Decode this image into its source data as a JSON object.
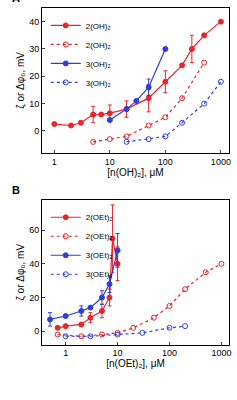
{
  "chart_data": [
    {
      "type": "scatter",
      "title": "A",
      "log": "x",
      "grid": false,
      "legend": "upper left",
      "x_label": "[n(OH)₂], μM",
      "y_label": "ζ or Δφ₀, mV",
      "xlim": [
        0.6,
        1400
      ],
      "xticks": [
        1,
        10,
        100,
        1000
      ],
      "ylim": [
        -8,
        45
      ],
      "yticks": [
        0,
        10,
        20,
        30,
        40
      ],
      "series": [
        {
          "name": "2(OH)₂",
          "color": "#e8252a",
          "marker": "circle",
          "line_style": "solid",
          "x": [
            1,
            2,
            3,
            5,
            7,
            10,
            20,
            50,
            100,
            200,
            300,
            500,
            1000
          ],
          "values": [
            2.5,
            2,
            3,
            6,
            6,
            6.5,
            8,
            12,
            18,
            24,
            30,
            35,
            40
          ],
          "errors": [
            null,
            null,
            null,
            3,
            null,
            3,
            3,
            5,
            4,
            null,
            5,
            null,
            null
          ]
        },
        {
          "name": "2(OH)₂",
          "color": "#e8252a",
          "marker": "circle-open",
          "line_style": "dot",
          "x": [
            5,
            10,
            20,
            50,
            100,
            200,
            500
          ],
          "values": [
            -4,
            -3,
            -2,
            2,
            5,
            12,
            25
          ],
          "errors": [
            null,
            null,
            null,
            null,
            null,
            null,
            null
          ]
        },
        {
          "name": "3(OH)₂",
          "color": "#2e3fd6",
          "marker": "circle",
          "line_style": "solid",
          "x": [
            10,
            20,
            30,
            50,
            100
          ],
          "values": [
            4,
            8,
            11,
            16,
            30
          ],
          "errors": [
            null,
            null,
            null,
            3,
            null
          ]
        },
        {
          "name": "3(OH)₂",
          "color": "#2e3fd6",
          "marker": "circle-open",
          "line_style": "dot",
          "x": [
            20,
            50,
            100,
            200,
            500,
            1000
          ],
          "values": [
            -4,
            -3,
            -2,
            3,
            10,
            18
          ],
          "errors": [
            null,
            null,
            null,
            null,
            null,
            null
          ]
        }
      ]
    },
    {
      "type": "scatter",
      "title": "B",
      "log": "x",
      "grid": false,
      "legend": "upper left",
      "x_label": "[n(OEt)₂], μM",
      "y_label": "ζ or Δφ₀, mV",
      "xlim": [
        0.35,
        1400
      ],
      "xticks": [
        1,
        10,
        100,
        1000
      ],
      "ylim": [
        -8,
        78
      ],
      "yticks": [
        0,
        20,
        40,
        60
      ],
      "series": [
        {
          "name": "2(OEt)₂",
          "color": "#e8252a",
          "marker": "circle",
          "line_style": "solid",
          "x": [
            0.7,
            1,
            2,
            3,
            5,
            7,
            8,
            10
          ],
          "values": [
            2,
            3,
            4,
            8,
            12,
            20,
            55,
            40
          ],
          "errors": [
            null,
            null,
            null,
            3,
            4,
            5,
            20,
            10
          ]
        },
        {
          "name": "2(OEt)₂",
          "color": "#e8252a",
          "marker": "circle-open",
          "line_style": "dot",
          "x": [
            0.7,
            2,
            5,
            10,
            20,
            50,
            100,
            200,
            500,
            1000
          ],
          "values": [
            -2,
            -3,
            -2,
            -1,
            2,
            8,
            15,
            25,
            35,
            40
          ],
          "errors": [
            null,
            null,
            null,
            null,
            null,
            null,
            null,
            null,
            null,
            null
          ]
        },
        {
          "name": "3(OEt)₂",
          "color": "#2e3fd6",
          "marker": "circle",
          "line_style": "solid",
          "x": [
            0.5,
            1,
            2,
            3,
            5,
            7,
            10
          ],
          "values": [
            7,
            9,
            12,
            14,
            20,
            28,
            48
          ],
          "errors": [
            4,
            null,
            3,
            null,
            4,
            5,
            10
          ]
        },
        {
          "name": "3(OEt)₂",
          "color": "#2e3fd6",
          "marker": "circle-open",
          "line_style": "dot",
          "x": [
            1,
            3,
            10,
            30,
            100,
            200
          ],
          "values": [
            -3,
            -3,
            -2,
            -1,
            2,
            3
          ],
          "errors": [
            null,
            null,
            null,
            null,
            null,
            null
          ]
        }
      ]
    }
  ]
}
